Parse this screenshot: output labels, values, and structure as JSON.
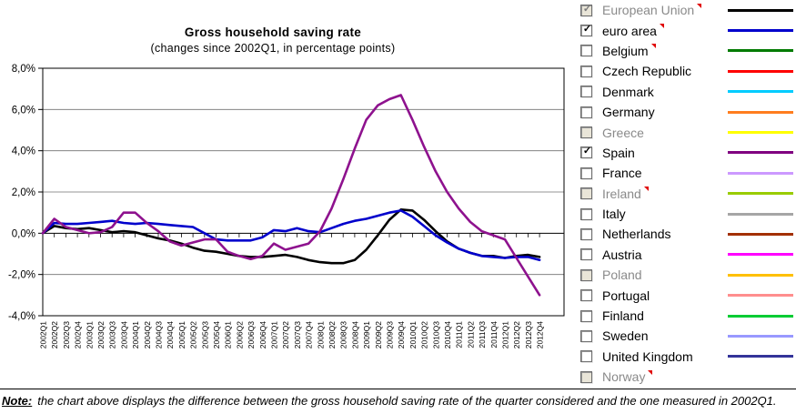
{
  "chart": {
    "title": "Gross household saving rate",
    "subtitle": "(changes since 2002Q1, in percentage points)"
  },
  "chart_data": {
    "type": "line",
    "title": "Gross household saving rate",
    "subtitle": "(changes since 2002Q1, in percentage points)",
    "xlabel": "",
    "ylabel": "",
    "ylim": [
      -4,
      8
    ],
    "ytick_step": 2,
    "ytick_labels_top_to_bottom": [
      "8,0%",
      "6,0%",
      "4,0%",
      "2,0%",
      "0,0%",
      "-2,0%",
      "-4,0%"
    ],
    "grid": true,
    "legend_position": "right",
    "x": [
      "2002Q1",
      "2002Q2",
      "2002Q3",
      "2002Q4",
      "2003Q1",
      "2003Q2",
      "2003Q3",
      "2003Q4",
      "2004Q1",
      "2004Q2",
      "2004Q3",
      "2004Q4",
      "2005Q1",
      "2005Q2",
      "2005Q3",
      "2005Q4",
      "2006Q1",
      "2006Q2",
      "2006Q3",
      "2006Q4",
      "2007Q1",
      "2007Q2",
      "2007Q3",
      "2007Q4",
      "2008Q1",
      "2008Q2",
      "2008Q3",
      "2008Q4",
      "2009Q1",
      "2009Q2",
      "2009Q3",
      "2009Q4",
      "2010Q1",
      "2010Q2",
      "2010Q3",
      "2010Q4",
      "2011Q1",
      "2011Q2",
      "2011Q3",
      "2011Q4",
      "2012Q1",
      "2012Q2",
      "2012Q3",
      "2012Q4"
    ],
    "series": [
      {
        "name": "European Union",
        "color": "#000000",
        "values": [
          0,
          0.35,
          0.25,
          0.2,
          0.25,
          0.15,
          0.05,
          0.1,
          0.05,
          -0.1,
          -0.25,
          -0.35,
          -0.5,
          -0.7,
          -0.85,
          -0.9,
          -1.0,
          -1.1,
          -1.15,
          -1.15,
          -1.1,
          -1.05,
          -1.15,
          -1.3,
          -1.4,
          -1.45,
          -1.45,
          -1.3,
          -0.8,
          -0.1,
          0.65,
          1.15,
          1.1,
          0.65,
          0.1,
          -0.4,
          -0.75,
          -0.95,
          -1.1,
          -1.1,
          -1.2,
          -1.1,
          -1.05,
          -1.15
        ]
      },
      {
        "name": "euro area",
        "color": "#0000cc",
        "values": [
          0,
          0.5,
          0.45,
          0.45,
          0.5,
          0.55,
          0.6,
          0.5,
          0.45,
          0.5,
          0.45,
          0.4,
          0.35,
          0.3,
          0.0,
          -0.3,
          -0.35,
          -0.35,
          -0.35,
          -0.2,
          0.15,
          0.1,
          0.25,
          0.1,
          0.05,
          0.25,
          0.45,
          0.6,
          0.7,
          0.85,
          1.0,
          1.1,
          0.8,
          0.35,
          -0.1,
          -0.45,
          -0.75,
          -0.95,
          -1.1,
          -1.15,
          -1.2,
          -1.15,
          -1.15,
          -1.3
        ]
      },
      {
        "name": "Spain",
        "color": "#8e128e",
        "values": [
          0,
          0.7,
          0.3,
          0.15,
          0,
          0.05,
          0.3,
          1.0,
          1.0,
          0.5,
          0.1,
          -0.4,
          -0.6,
          -0.45,
          -0.3,
          -0.3,
          -0.9,
          -1.1,
          -1.25,
          -1.1,
          -0.5,
          -0.8,
          -0.65,
          -0.5,
          0.1,
          1.2,
          2.6,
          4.1,
          5.5,
          6.2,
          6.5,
          6.7,
          5.5,
          4.2,
          3.0,
          2.0,
          1.2,
          0.55,
          0.1,
          -0.1,
          -0.3,
          -1.2,
          -2.1,
          -3.0
        ]
      }
    ]
  },
  "legend": {
    "items": [
      {
        "label": "European Union",
        "color": "#000000",
        "checked": true,
        "disabled": true,
        "comment": true
      },
      {
        "label": "euro area",
        "color": "#0000cc",
        "checked": true,
        "disabled": false,
        "comment": true
      },
      {
        "label": "Belgium",
        "color": "#007a00",
        "checked": false,
        "disabled": false,
        "comment": true
      },
      {
        "label": "Czech Republic",
        "color": "#ff0000",
        "checked": false,
        "disabled": false,
        "comment": false
      },
      {
        "label": "Denmark",
        "color": "#00ccff",
        "checked": false,
        "disabled": false,
        "comment": false
      },
      {
        "label": "Germany",
        "color": "#ff7d1e",
        "checked": false,
        "disabled": false,
        "comment": false
      },
      {
        "label": "Greece",
        "color": "#ffff00",
        "checked": false,
        "disabled": true,
        "comment": false
      },
      {
        "label": "Spain",
        "color": "#800080",
        "checked": true,
        "disabled": false,
        "comment": false
      },
      {
        "label": "France",
        "color": "#cc99ff",
        "checked": false,
        "disabled": false,
        "comment": false
      },
      {
        "label": "Ireland",
        "color": "#99cc00",
        "checked": false,
        "disabled": true,
        "comment": true
      },
      {
        "label": "Italy",
        "color": "#a6a6a6",
        "checked": false,
        "disabled": false,
        "comment": false
      },
      {
        "label": "Netherlands",
        "color": "#a33000",
        "checked": false,
        "disabled": false,
        "comment": false
      },
      {
        "label": "Austria",
        "color": "#ff00ff",
        "checked": false,
        "disabled": false,
        "comment": false
      },
      {
        "label": "Poland",
        "color": "#ffc000",
        "checked": false,
        "disabled": true,
        "comment": false
      },
      {
        "label": "Portugal",
        "color": "#ff8e8e",
        "checked": false,
        "disabled": false,
        "comment": false
      },
      {
        "label": "Finland",
        "color": "#00cc33",
        "checked": false,
        "disabled": false,
        "comment": false
      },
      {
        "label": "Sweden",
        "color": "#9999ff",
        "checked": false,
        "disabled": false,
        "comment": false
      },
      {
        "label": "United Kingdom",
        "color": "#333399",
        "checked": false,
        "disabled": false,
        "comment": false
      },
      {
        "label": "Norway",
        "color": null,
        "checked": false,
        "disabled": true,
        "comment": true
      }
    ],
    "check_glyph": "✓"
  },
  "note": {
    "label": "Note:",
    "text": "the chart above displays the difference between the gross household saving rate of the quarter considered and the one measured in 2002Q1."
  }
}
